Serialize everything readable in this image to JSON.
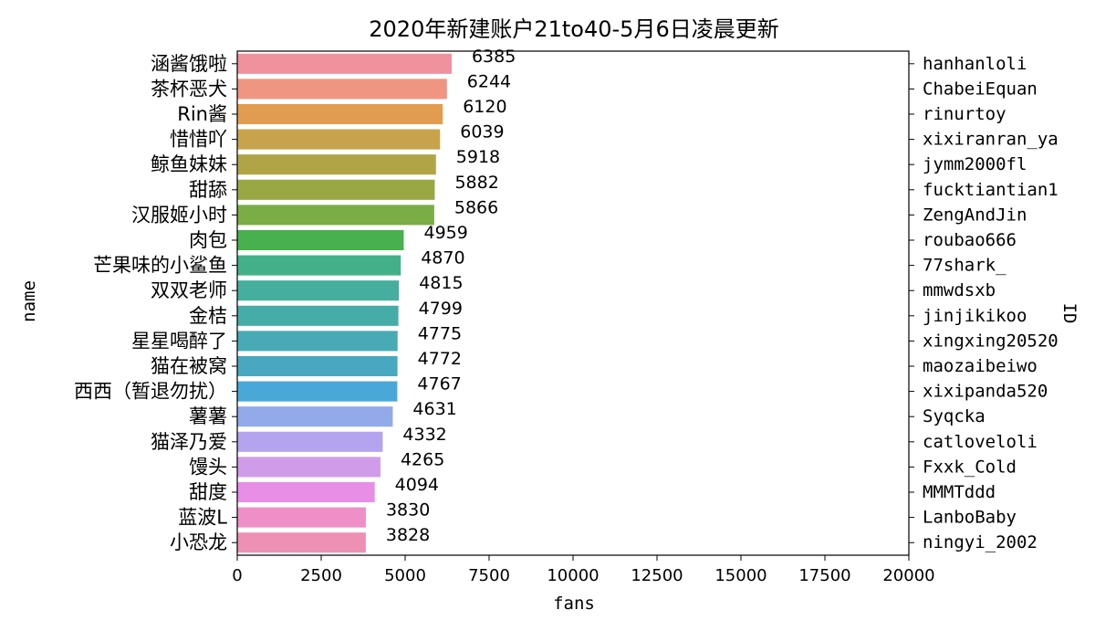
{
  "chart_data": {
    "type": "bar",
    "orientation": "horizontal",
    "title": "2020年新建账户21to40-5月6日凌晨更新",
    "xlabel": "fans",
    "ylabel": "name",
    "y2label": "ID",
    "xlim": [
      0,
      20000
    ],
    "xticks": [
      0,
      2500,
      5000,
      7500,
      10000,
      12500,
      15000,
      17500,
      20000
    ],
    "grid": false,
    "categories": [
      "涵酱饿啦",
      "茶杯恶犬",
      "Rin酱",
      "惜惜吖",
      "鲸鱼妹妹",
      "甜舔",
      "汉服姬小时",
      "肉包",
      "芒果味的小鲨鱼",
      "双双老师",
      "金桔",
      "星星喝醉了",
      "猫在被窝",
      "西西（暂退勿扰）",
      "薯薯",
      "猫泽乃爱",
      "馒头",
      "甜度",
      "蓝波L",
      "小恐龙"
    ],
    "ids": [
      "hanhanloli",
      "ChabeiEquan",
      "rinurtoy",
      "xixiranran_ya",
      "jymm2000fl",
      "fucktiantian1",
      "ZengAndJin",
      "roubao666",
      "77shark_",
      "mmwdsxb",
      "jinjikikoo",
      "xingxing20520",
      "maozaibeiwo",
      "xixipanda520",
      "Syqcka",
      "catloveloli",
      "Fxxk_Cold",
      "MMMTddd",
      "LanboBaby",
      "ningyi_2002"
    ],
    "values": [
      6385,
      6244,
      6120,
      6039,
      5918,
      5882,
      5866,
      4959,
      4870,
      4815,
      4799,
      4775,
      4772,
      4767,
      4631,
      4332,
      4265,
      4094,
      3830,
      3828
    ],
    "colors": [
      "#f0919e",
      "#ef9582",
      "#e29c4f",
      "#c9a34b",
      "#b1a447",
      "#9aa745",
      "#7aad45",
      "#48b04e",
      "#43b08a",
      "#45ae9e",
      "#46aca8",
      "#47aab4",
      "#48a8c0",
      "#4aa8d8",
      "#92a9ea",
      "#b4a3ee",
      "#cf9ce9",
      "#e88ee6",
      "#ef8fc8",
      "#ee90b4"
    ]
  }
}
